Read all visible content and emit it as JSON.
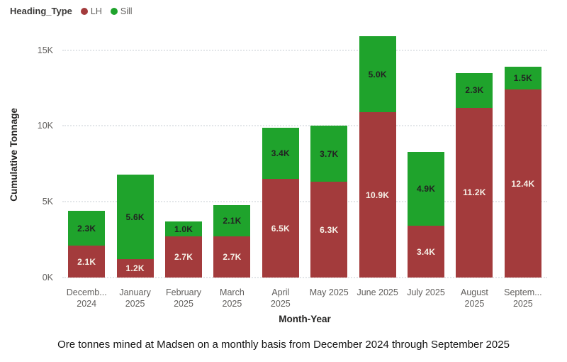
{
  "legend": {
    "title": "Heading_Type",
    "position": "top-left",
    "items": [
      {
        "label": "LH",
        "color": "#a33b3c"
      },
      {
        "label": "Sill",
        "color": "#1fa32c"
      }
    ]
  },
  "chart_data": {
    "type": "bar",
    "stacked": true,
    "title": "",
    "xlabel": "Month-Year",
    "ylabel": "Cumulative Tonnage",
    "ylim": [
      0,
      16.2
    ],
    "grid": true,
    "legend_position": "top-left",
    "yticks": [
      {
        "value": 0,
        "label": "0K"
      },
      {
        "value": 5,
        "label": "5K"
      },
      {
        "value": 10,
        "label": "10K"
      },
      {
        "value": 15,
        "label": "15K"
      }
    ],
    "categories": [
      "December 2024",
      "January 2025",
      "February 2025",
      "March 2025",
      "April 2025",
      "May 2025",
      "June 2025",
      "July 2025",
      "August 2025",
      "September 2025"
    ],
    "category_labels": [
      [
        "Decemb...",
        "2024"
      ],
      [
        "January",
        "2025"
      ],
      [
        "February",
        "2025"
      ],
      [
        "March",
        "2025"
      ],
      [
        "April",
        "2025"
      ],
      [
        "May 2025"
      ],
      [
        "June 2025"
      ],
      [
        "July 2025"
      ],
      [
        "August",
        "2025"
      ],
      [
        "Septem...",
        "2025"
      ]
    ],
    "series": [
      {
        "name": "LH",
        "color": "#a33b3c",
        "label_color": "#f6f0e7",
        "values": [
          2.1,
          1.2,
          2.7,
          2.7,
          6.5,
          6.3,
          10.9,
          3.4,
          11.2,
          12.4
        ],
        "labels": [
          "2.1K",
          "1.2K",
          "2.7K",
          "2.7K",
          "6.5K",
          "6.3K",
          "10.9K",
          "3.4K",
          "11.2K",
          "12.4K"
        ]
      },
      {
        "name": "Sill",
        "color": "#1fa32c",
        "label_color": "#222222",
        "values": [
          2.3,
          5.6,
          1.0,
          2.1,
          3.4,
          3.7,
          5.0,
          4.9,
          2.3,
          1.5
        ],
        "labels": [
          "2.3K",
          "5.6K",
          "1.0K",
          "2.1K",
          "3.4K",
          "3.7K",
          "5.0K",
          "4.9K",
          "2.3K",
          "1.5K"
        ]
      }
    ]
  },
  "caption": "Ore tonnes mined at Madsen on a monthly basis from December 2024 through September 2025"
}
